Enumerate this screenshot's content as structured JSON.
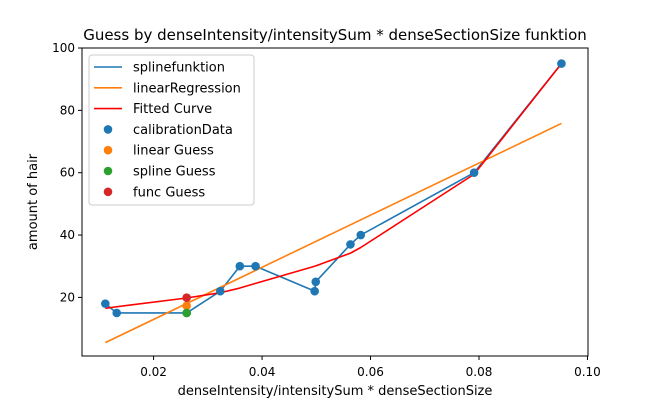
{
  "chart_data": {
    "type": "line",
    "title": "Guess by denseIntensity/intensitySum * denseSectionSize funktion",
    "xlabel": "denseIntensity/intensitySum * denseSectionSize",
    "ylabel": "amount of hair",
    "xlim": [
      0.0068,
      0.1001
    ],
    "ylim": [
      1.2,
      100.0
    ],
    "xticks": [
      0.02,
      0.04,
      0.06,
      0.08,
      0.1
    ],
    "xtick_labels": [
      "0.02",
      "0.04",
      "0.06",
      "0.08",
      "0.10"
    ],
    "yticks": [
      20,
      40,
      60,
      80,
      100
    ],
    "ytick_labels": [
      "20",
      "40",
      "60",
      "80",
      "100"
    ],
    "grid": false,
    "legend_position": "top-left",
    "series": [
      {
        "name": "splinefunktion",
        "kind": "line",
        "color": "#1f77b4",
        "x": [
          0.0111,
          0.0132,
          0.0261,
          0.0323,
          0.0359,
          0.0388,
          0.0497,
          0.0499,
          0.0563,
          0.0582,
          0.0791,
          0.0952
        ],
        "y": [
          18,
          15,
          15,
          22,
          30,
          30,
          22,
          25,
          37,
          40,
          60,
          95
        ]
      },
      {
        "name": "linearRegression",
        "kind": "line",
        "color": "#ff7f0e",
        "x": [
          0.0111,
          0.0952
        ],
        "y": [
          5.5,
          75.8
        ]
      },
      {
        "name": "Fitted Curve",
        "kind": "line",
        "color": "#ff0000",
        "x": [
          0.0111,
          0.0132,
          0.0261,
          0.0323,
          0.0359,
          0.0388,
          0.0497,
          0.0499,
          0.0563,
          0.0582,
          0.0791,
          0.0952
        ],
        "y": [
          16.5,
          17.0,
          19.8,
          21.5,
          23.0,
          24.5,
          30.0,
          30.1,
          34.2,
          36.0,
          59.5,
          95.0
        ]
      },
      {
        "name": "calibrationData",
        "kind": "scatter",
        "color": "#1f77b4",
        "x": [
          0.0111,
          0.0132,
          0.0261,
          0.0323,
          0.0359,
          0.0388,
          0.0497,
          0.0499,
          0.0563,
          0.0582,
          0.0791,
          0.0952
        ],
        "y": [
          18,
          15,
          15,
          22,
          30,
          30,
          22,
          25,
          37,
          40,
          60,
          95
        ]
      },
      {
        "name": "linear Guess",
        "kind": "scatter",
        "color": "#ff7f0e",
        "x": [
          0.0261
        ],
        "y": [
          17.3
        ]
      },
      {
        "name": "spline Guess",
        "kind": "scatter",
        "color": "#2ca02c",
        "x": [
          0.0261
        ],
        "y": [
          15
        ]
      },
      {
        "name": "func Guess",
        "kind": "scatter",
        "color": "#d62728",
        "x": [
          0.0261
        ],
        "y": [
          19.9
        ]
      }
    ]
  }
}
